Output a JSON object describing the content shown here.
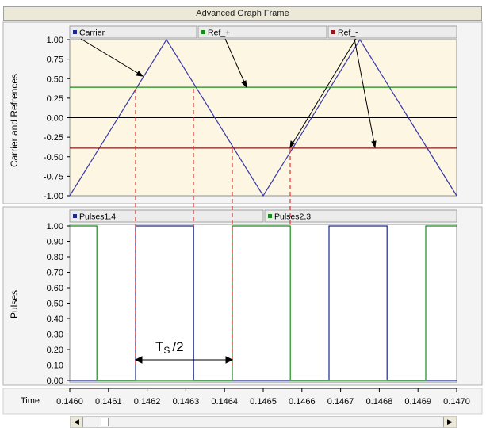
{
  "window": {
    "title": "Advanced Graph Frame"
  },
  "panels": {
    "top": {
      "ylabel": "Carrier and Refrences",
      "legend": [
        {
          "label": "Carrier",
          "color": "#1c2a8c"
        },
        {
          "label": "Ref_+",
          "color": "#1a8a1a"
        },
        {
          "label": "Ref_-",
          "color": "#8c1a1a"
        }
      ]
    },
    "bottom": {
      "ylabel": "Pulses",
      "legend": [
        {
          "label": "Pulses1,4",
          "color": "#1c2a8c"
        },
        {
          "label": "Pulses2,3",
          "color": "#1a8a1a"
        }
      ]
    }
  },
  "x_axis": {
    "label": "Time"
  },
  "annotation": {
    "text_main": "T",
    "text_sub": "S",
    "text_tail": "/2"
  },
  "scrollbar": {
    "left_arrow": "◀",
    "right_arrow": "▶"
  },
  "chart_data": [
    {
      "type": "line",
      "title": "",
      "xlabel": "Time",
      "ylabel": "Carrier and Refrences",
      "xlim": [
        0.146,
        0.147
      ],
      "ylim": [
        -1.0,
        1.0
      ],
      "y_ticks": [
        "1.00",
        "0.75",
        "0.50",
        "0.25",
        "0.00",
        "-0.25",
        "-0.50",
        "-0.75",
        "-1.00"
      ],
      "background": "#fcf6e2",
      "series": [
        {
          "name": "Carrier",
          "color": "#3a3aa8",
          "x": [
            0.146,
            0.14625,
            0.1465,
            0.14675,
            0.147
          ],
          "y": [
            -1.0,
            1.0,
            -1.0,
            1.0,
            -1.0
          ]
        },
        {
          "name": "Ref_+",
          "color": "#1a8a1a",
          "x": [
            0.146,
            0.147
          ],
          "y": [
            0.39,
            0.39
          ]
        },
        {
          "name": "Ref_-",
          "color": "#8c1a1a",
          "x": [
            0.146,
            0.147
          ],
          "y": [
            -0.39,
            -0.39
          ]
        }
      ],
      "zero_line_color": "#000000"
    },
    {
      "type": "line",
      "title": "",
      "xlabel": "Time",
      "ylabel": "Pulses",
      "xlim": [
        0.146,
        0.147
      ],
      "ylim": [
        0.0,
        1.0
      ],
      "y_ticks": [
        "1.00",
        "0.90",
        "0.80",
        "0.70",
        "0.60",
        "0.50",
        "0.40",
        "0.30",
        "0.20",
        "0.10",
        "0.00"
      ],
      "x_ticks": [
        "0.1460",
        "0.1461",
        "0.1462",
        "0.1463",
        "0.1464",
        "0.1465",
        "0.1466",
        "0.1467",
        "0.1468",
        "0.1469",
        "0.1470"
      ],
      "background": "#ffffff",
      "series": [
        {
          "name": "Pulses1,4",
          "color": "#1c2a8c",
          "x": [
            0.146,
            0.14617,
            0.14617,
            0.14632,
            0.14632,
            0.14667,
            0.14667,
            0.14682,
            0.14682,
            0.147
          ],
          "y": [
            0,
            0,
            1,
            1,
            0,
            0,
            1,
            1,
            0,
            0
          ]
        },
        {
          "name": "Pulses2,3",
          "color": "#1a8a1a",
          "x": [
            0.146,
            0.14607,
            0.14607,
            0.14642,
            0.14642,
            0.14657,
            0.14657,
            0.14692,
            0.14692,
            0.147
          ],
          "y": [
            1,
            1,
            0,
            0,
            1,
            1,
            0,
            0,
            1,
            1
          ]
        }
      ]
    }
  ]
}
